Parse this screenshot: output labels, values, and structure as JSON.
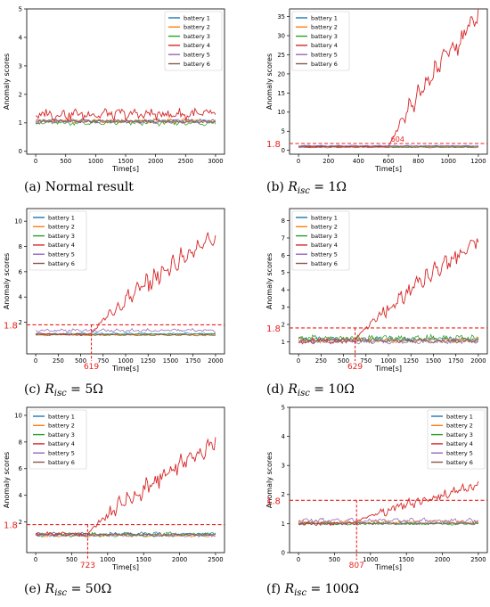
{
  "legend_labels": [
    "battery 1",
    "battery 2",
    "battery 3",
    "battery 4",
    "battery 5",
    "battery 6"
  ],
  "colors": {
    "battery 1": "#1f77b4",
    "battery 2": "#ff7f0e",
    "battery 3": "#2ca02c",
    "battery 4": "#d62728",
    "battery 5": "#9467bd",
    "battery 6": "#8c564b",
    "threshold": "#e8201a",
    "axis": "#000000"
  },
  "chart_data": [
    {
      "id": "a",
      "type": "line",
      "caption_prefix": "(a) ",
      "caption_main": "Normal result",
      "caption_sub": "",
      "caption_suffix": "",
      "xlabel": "Time[s]",
      "ylabel": "Anomaly scores",
      "xlim": [
        -150,
        3150
      ],
      "ylim": [
        -0.1,
        5.0
      ],
      "xticks": [
        0,
        500,
        1000,
        1500,
        2000,
        2500,
        3000
      ],
      "yticks": [
        0,
        1,
        2,
        3,
        4,
        5
      ],
      "legend": "top-right",
      "threshold": null,
      "onset": null,
      "duration": 3000,
      "fault_end": null,
      "series": [
        {
          "name": "battery 1",
          "baseline": 1.08,
          "amp": 0.04
        },
        {
          "name": "battery 2",
          "baseline": 1.06,
          "amp": 0.06
        },
        {
          "name": "battery 3",
          "baseline": 1.0,
          "amp": 0.07
        },
        {
          "name": "battery 4",
          "baseline": 1.3,
          "amp": 0.15
        },
        {
          "name": "battery 5",
          "baseline": 1.05,
          "amp": 0.05
        },
        {
          "name": "battery 6",
          "baseline": 1.05,
          "amp": 0.05
        }
      ]
    },
    {
      "id": "b",
      "type": "line",
      "caption_prefix": "(b) ",
      "caption_main": "R",
      "caption_sub": "isc",
      "caption_suffix": " = 1Ω",
      "xlabel": "Time[s]",
      "ylabel": "Anomaly scores",
      "xlim": [
        -60,
        1260
      ],
      "ylim": [
        -1,
        37
      ],
      "xticks": [
        0,
        200,
        400,
        600,
        800,
        1000,
        1200
      ],
      "yticks": [
        0,
        5,
        10,
        15,
        20,
        25,
        30,
        35
      ],
      "legend": "top-left",
      "threshold": {
        "value": 1.8,
        "label": "1.8"
      },
      "onset": {
        "x": 604,
        "label": "604"
      },
      "duration": 1200,
      "fault_end": 35.0,
      "series": [
        {
          "name": "battery 1",
          "baseline": 1.1,
          "amp": 0.1
        },
        {
          "name": "battery 2",
          "baseline": 0.9,
          "amp": 0.1
        },
        {
          "name": "battery 3",
          "baseline": 1.0,
          "amp": 0.1
        },
        {
          "name": "battery 4",
          "baseline": 1.0,
          "amp": 0.1
        },
        {
          "name": "battery 5",
          "baseline": 1.2,
          "amp": 0.1
        },
        {
          "name": "battery 6",
          "baseline": 0.8,
          "amp": 0.1
        }
      ]
    },
    {
      "id": "c",
      "type": "line",
      "caption_prefix": "(c) ",
      "caption_main": "R",
      "caption_sub": "isc",
      "caption_suffix": " = 5Ω",
      "xlabel": "Time[s]",
      "ylabel": "Anomaly scores",
      "xlim": [
        -100,
        2100
      ],
      "ylim": [
        -0.5,
        11
      ],
      "xticks": [
        0,
        250,
        500,
        750,
        1000,
        1250,
        1500,
        1750,
        2000
      ],
      "yticks": [
        2,
        4,
        6,
        8,
        10
      ],
      "legend": "top-left",
      "threshold": {
        "value": 1.8,
        "label": "1.8"
      },
      "onset": {
        "x": 619,
        "label": "619"
      },
      "duration": 2000,
      "fault_end": 9.0,
      "series": [
        {
          "name": "battery 1",
          "baseline": 1.1,
          "amp": 0.05
        },
        {
          "name": "battery 2",
          "baseline": 1.0,
          "amp": 0.05
        },
        {
          "name": "battery 3",
          "baseline": 1.05,
          "amp": 0.05
        },
        {
          "name": "battery 4",
          "baseline": 1.05,
          "amp": 0.05
        },
        {
          "name": "battery 5",
          "baseline": 1.35,
          "amp": 0.1
        },
        {
          "name": "battery 6",
          "baseline": 1.0,
          "amp": 0.05
        }
      ]
    },
    {
      "id": "d",
      "type": "line",
      "caption_prefix": "(d) ",
      "caption_main": "R",
      "caption_sub": "isc",
      "caption_suffix": " = 10Ω",
      "xlabel": "Time[s]",
      "ylabel": "Anomaly scores",
      "xlim": [
        -100,
        2100
      ],
      "ylim": [
        0.3,
        8.7
      ],
      "xticks": [
        0,
        250,
        500,
        750,
        1000,
        1250,
        1500,
        1750,
        2000
      ],
      "yticks": [
        1,
        2,
        3,
        4,
        5,
        6,
        7,
        8
      ],
      "legend": "top-left",
      "threshold": {
        "value": 1.8,
        "label": "1.8"
      },
      "onset": {
        "x": 629,
        "label": "629"
      },
      "duration": 2000,
      "fault_end": 6.8,
      "series": [
        {
          "name": "battery 1",
          "baseline": 1.15,
          "amp": 0.12
        },
        {
          "name": "battery 2",
          "baseline": 1.1,
          "amp": 0.12
        },
        {
          "name": "battery 3",
          "baseline": 1.2,
          "amp": 0.15
        },
        {
          "name": "battery 4",
          "baseline": 1.05,
          "amp": 0.12
        },
        {
          "name": "battery 5",
          "baseline": 1.0,
          "amp": 0.1
        },
        {
          "name": "battery 6",
          "baseline": 1.05,
          "amp": 0.1
        }
      ]
    },
    {
      "id": "e",
      "type": "line",
      "caption_prefix": "(e) ",
      "caption_main": "R",
      "caption_sub": "isc",
      "caption_suffix": " = 50Ω",
      "xlabel": "Time[s]",
      "ylabel": "Anomaly scores",
      "xlim": [
        -125,
        2625
      ],
      "ylim": [
        -0.3,
        10.6
      ],
      "xticks": [
        0,
        500,
        1000,
        1500,
        2000,
        2500
      ],
      "yticks": [
        2,
        4,
        6,
        8,
        10
      ],
      "legend": "top-left",
      "threshold": {
        "value": 1.8,
        "label": "1.8"
      },
      "onset": {
        "x": 723,
        "label": "723"
      },
      "duration": 2500,
      "fault_end": 8.0,
      "series": [
        {
          "name": "battery 1",
          "baseline": 1.1,
          "amp": 0.1
        },
        {
          "name": "battery 2",
          "baseline": 1.0,
          "amp": 0.1
        },
        {
          "name": "battery 3",
          "baseline": 1.05,
          "amp": 0.12
        },
        {
          "name": "battery 4",
          "baseline": 1.1,
          "amp": 0.1
        },
        {
          "name": "battery 5",
          "baseline": 1.0,
          "amp": 0.08
        },
        {
          "name": "battery 6",
          "baseline": 1.05,
          "amp": 0.08
        }
      ]
    },
    {
      "id": "f",
      "type": "line",
      "caption_prefix": "(f) ",
      "caption_main": "R",
      "caption_sub": "isc",
      "caption_suffix": " = 100Ω",
      "xlabel": "Time[s]",
      "ylabel": "Anomaly scores",
      "xlim": [
        -125,
        2625
      ],
      "ylim": [
        0,
        5
      ],
      "xticks": [
        0,
        500,
        1000,
        1500,
        2000,
        2500
      ],
      "yticks": [
        0,
        1,
        2,
        3,
        4,
        5
      ],
      "legend": "top-right",
      "threshold": {
        "value": 1.8,
        "label": "1.8"
      },
      "onset": {
        "x": 807,
        "label": "807"
      },
      "duration": 2500,
      "fault_end": 2.3,
      "series": [
        {
          "name": "battery 1",
          "baseline": 1.0,
          "amp": 0.03
        },
        {
          "name": "battery 2",
          "baseline": 1.05,
          "amp": 0.05
        },
        {
          "name": "battery 3",
          "baseline": 1.0,
          "amp": 0.04
        },
        {
          "name": "battery 4",
          "baseline": 1.0,
          "amp": 0.05
        },
        {
          "name": "battery 5",
          "baseline": 1.1,
          "amp": 0.06
        },
        {
          "name": "battery 6",
          "baseline": 1.0,
          "amp": 0.03
        }
      ]
    }
  ]
}
